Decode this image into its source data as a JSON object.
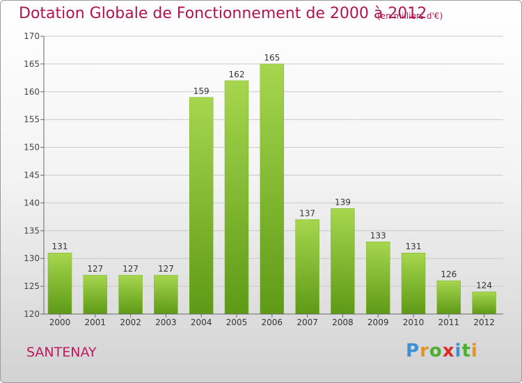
{
  "header": {
    "title": "Dotation Globale de Fonctionnement de 2000 à 2012",
    "unit": "(en milliers d'€)"
  },
  "footer": {
    "commune": "SANTENAY",
    "logo": {
      "letters": [
        "P",
        "r",
        "o",
        "x",
        "i",
        "t",
        "i"
      ],
      "colors": [
        "#3a8fd6",
        "#e8931a",
        "#4caf2f",
        "#e02a2a",
        "#3a8fd6",
        "#4caf2f",
        "#e8931a"
      ]
    }
  },
  "colors": {
    "title": "#b0144c",
    "bar_light": "#a6d64e",
    "bar_dark": "#5e9a16",
    "grid": "#c8c8c8",
    "axis": "#666666"
  },
  "chart_data": {
    "type": "bar",
    "title": "Dotation Globale de Fonctionnement de 2000 à 2012",
    "subtitle": "(en milliers d'€)",
    "categories": [
      "2000",
      "2001",
      "2002",
      "2003",
      "2004",
      "2005",
      "2006",
      "2007",
      "2008",
      "2009",
      "2010",
      "2011",
      "2012"
    ],
    "values": [
      131,
      127,
      127,
      127,
      159,
      162,
      165,
      137,
      139,
      133,
      131,
      126,
      124
    ],
    "ylim": [
      120,
      170
    ],
    "yticks": [
      120,
      125,
      130,
      135,
      140,
      145,
      150,
      155,
      160,
      165,
      170
    ],
    "grid": "horizontal",
    "legend": "none"
  }
}
